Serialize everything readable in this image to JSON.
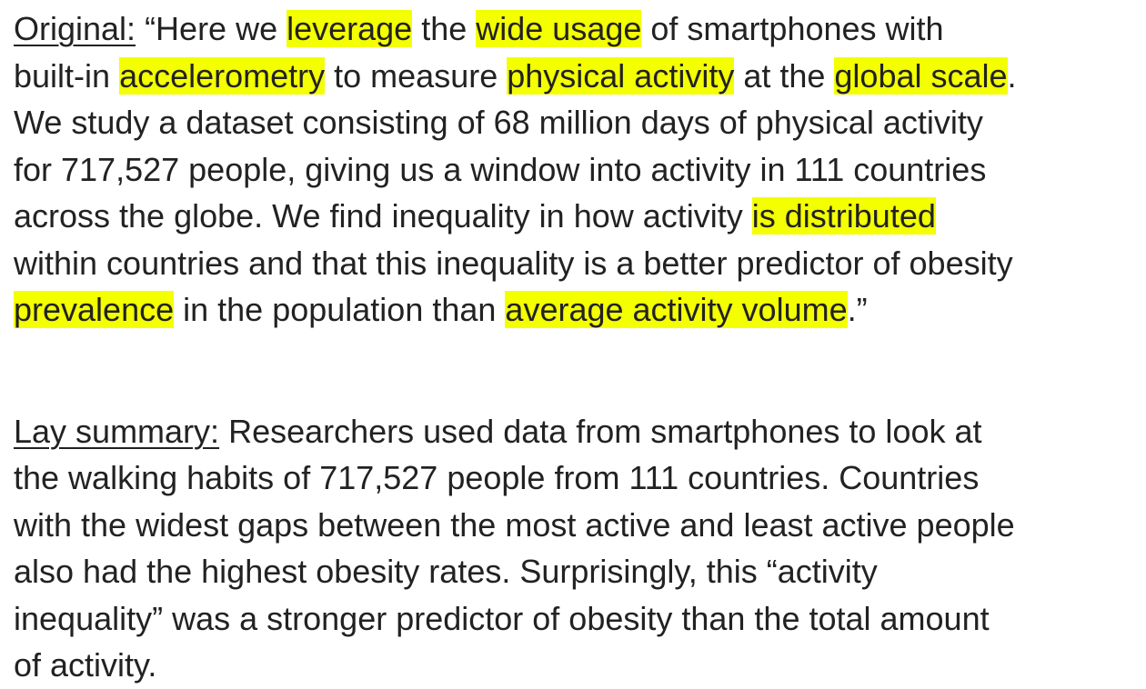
{
  "original": {
    "label": "Original:",
    "lines": [
      [
        {
          "text": " “Here we ",
          "highlight": false
        },
        {
          "text": "leverage",
          "highlight": true
        },
        {
          "text": " the ",
          "highlight": false
        },
        {
          "text": "wide usage",
          "highlight": true
        },
        {
          "text": " of smartphones with",
          "highlight": false
        }
      ],
      [
        {
          "text": "built-in ",
          "highlight": false
        },
        {
          "text": "accelerometry",
          "highlight": true
        },
        {
          "text": " to measure ",
          "highlight": false
        },
        {
          "text": "physical activity",
          "highlight": true
        },
        {
          "text": " at the ",
          "highlight": false
        },
        {
          "text": "global scale",
          "highlight": true
        },
        {
          "text": ".",
          "highlight": false
        }
      ],
      [
        {
          "text": "We study a dataset consisting of 68 million days of physical activity",
          "highlight": false
        }
      ],
      [
        {
          "text": "for 717,527 people, giving us a window into activity in 111 countries",
          "highlight": false
        }
      ],
      [
        {
          "text": "across the globe. We find inequality in how activity ",
          "highlight": false
        },
        {
          "text": "is distributed",
          "highlight": true
        }
      ],
      [
        {
          "text": "within countries and that this inequality is a better predictor of obesity",
          "highlight": false
        }
      ],
      [
        {
          "text": "prevalence",
          "highlight": true
        },
        {
          "text": " in the population than ",
          "highlight": false
        },
        {
          "text": "average activity volume",
          "highlight": true
        },
        {
          "text": ".”",
          "highlight": false
        }
      ]
    ]
  },
  "lay_summary": {
    "label": "Lay summary:",
    "lines": [
      " Researchers used data from smartphones to look at",
      "the walking habits of 717,527 people from 111 countries. Countries",
      "with the widest gaps between the most active and least active people",
      "also had the highest obesity rates. Surprisingly, this “activity",
      "inequality” was a stronger predictor of obesity than the total amount",
      "of activity."
    ]
  },
  "colors": {
    "highlight": "#f4ff00",
    "text": "#222222",
    "background": "#ffffff"
  }
}
